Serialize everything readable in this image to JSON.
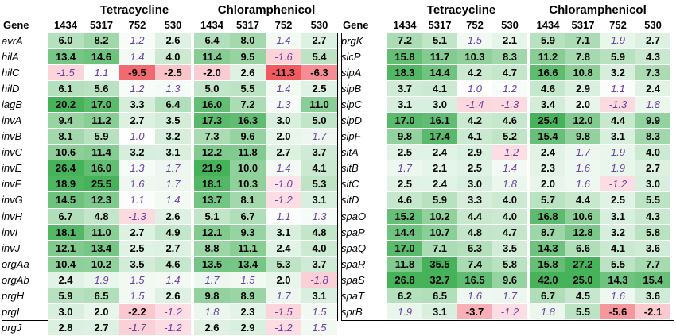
{
  "chart_data": [
    {
      "type": "heatmap",
      "panel": "left",
      "row_header": "Gene",
      "groups": [
        {
          "label": "Tetracycline",
          "columns": [
            "1434",
            "5317",
            "752",
            "530"
          ]
        },
        {
          "label": "Chloramphenicol",
          "columns": [
            "1434",
            "5317",
            "752",
            "530"
          ]
        }
      ],
      "rows": [
        {
          "gene": "avrA",
          "values": [
            6.0,
            8.2,
            1.2,
            2.6,
            6.4,
            8.0,
            1.4,
            2.7
          ]
        },
        {
          "gene": "hilA",
          "values": [
            13.4,
            14.6,
            1.4,
            4.0,
            11.4,
            9.5,
            -1.6,
            5.4
          ]
        },
        {
          "gene": "hilC",
          "values": [
            -1.5,
            1.1,
            -9.5,
            -2.5,
            -2.0,
            2.6,
            -11.3,
            -6.3
          ]
        },
        {
          "gene": "hilD",
          "values": [
            6.1,
            5.6,
            1.2,
            1.3,
            5.0,
            5.5,
            1.4,
            2.5
          ]
        },
        {
          "gene": "iagB",
          "values": [
            20.2,
            17.0,
            3.3,
            6.4,
            16.0,
            7.2,
            1.3,
            11.0
          ]
        },
        {
          "gene": "invA",
          "values": [
            9.4,
            11.2,
            2.7,
            3.5,
            17.3,
            16.3,
            3.0,
            5.0
          ]
        },
        {
          "gene": "invB",
          "values": [
            8.1,
            5.9,
            1.0,
            3.2,
            7.3,
            9.6,
            2.0,
            1.7
          ]
        },
        {
          "gene": "invC",
          "values": [
            10.6,
            11.4,
            3.2,
            3.1,
            12.2,
            11.8,
            2.7,
            3.7
          ]
        },
        {
          "gene": "invE",
          "values": [
            26.4,
            16.0,
            1.3,
            1.7,
            21.9,
            10.0,
            1.4,
            4.1
          ]
        },
        {
          "gene": "invF",
          "values": [
            18.9,
            25.5,
            1.6,
            1.7,
            18.1,
            10.3,
            -1.0,
            5.3
          ]
        },
        {
          "gene": "invG",
          "values": [
            14.5,
            12.3,
            1.1,
            1.4,
            13.7,
            8.1,
            -1.2,
            3.1
          ]
        },
        {
          "gene": "invH",
          "values": [
            6.7,
            4.8,
            -1.3,
            2.6,
            5.1,
            6.7,
            1.1,
            1.3
          ]
        },
        {
          "gene": "invI",
          "values": [
            18.1,
            11.0,
            2.7,
            4.9,
            12.1,
            9.3,
            3.1,
            4.8
          ]
        },
        {
          "gene": "invJ",
          "values": [
            12.1,
            13.4,
            2.5,
            2.7,
            8.8,
            11.1,
            2.4,
            4.0
          ]
        },
        {
          "gene": "orgAa",
          "values": [
            10.4,
            10.2,
            3.5,
            4.6,
            13.5,
            13.4,
            5.3,
            3.7
          ]
        },
        {
          "gene": "orgAb",
          "values": [
            2.4,
            1.9,
            1.5,
            1.4,
            1.7,
            1.5,
            2.0,
            -1.8
          ]
        },
        {
          "gene": "prgH",
          "values": [
            5.9,
            6.5,
            1.5,
            2.6,
            9.8,
            8.9,
            1.7,
            3.1
          ]
        },
        {
          "gene": "prgI",
          "values": [
            3.0,
            2.0,
            -2.2,
            -1.2,
            1.8,
            2.3,
            -1.5,
            1.5
          ]
        },
        {
          "gene": "prgJ",
          "values": [
            2.8,
            2.7,
            -1.7,
            -1.2,
            2.6,
            2.9,
            -1.2,
            1.5
          ]
        }
      ]
    },
    {
      "type": "heatmap",
      "panel": "right",
      "row_header": "Gene",
      "groups": [
        {
          "label": "Tetracycline",
          "columns": [
            "1434",
            "5317",
            "752",
            "530"
          ]
        },
        {
          "label": "Chloramphenicol",
          "columns": [
            "1434",
            "5317",
            "752",
            "530"
          ]
        }
      ],
      "rows": [
        {
          "gene": "prgK",
          "values": [
            7.2,
            5.1,
            1.5,
            2.1,
            5.9,
            7.1,
            1.9,
            2.7
          ]
        },
        {
          "gene": "sicP",
          "values": [
            15.8,
            11.7,
            10.3,
            8.3,
            11.2,
            7.8,
            5.9,
            4.3
          ]
        },
        {
          "gene": "sipA",
          "values": [
            18.3,
            14.4,
            4.2,
            4.7,
            16.6,
            10.8,
            3.2,
            7.3
          ]
        },
        {
          "gene": "sipB",
          "values": [
            3.7,
            4.1,
            1.0,
            1.2,
            4.6,
            2.9,
            1.1,
            2.4
          ]
        },
        {
          "gene": "sipC",
          "values": [
            3.1,
            3.0,
            -1.4,
            -1.3,
            3.4,
            2.0,
            -1.3,
            1.8
          ]
        },
        {
          "gene": "sipD",
          "values": [
            17.0,
            16.1,
            4.2,
            4.6,
            25.4,
            12.0,
            4.4,
            9.9
          ]
        },
        {
          "gene": "sipF",
          "values": [
            9.8,
            17.4,
            4.1,
            5.2,
            15.4,
            9.8,
            3.1,
            8.3
          ]
        },
        {
          "gene": "sitA",
          "values": [
            2.5,
            2.4,
            2.9,
            -1.2,
            2.4,
            1.7,
            1.9,
            4.0
          ]
        },
        {
          "gene": "sitB",
          "values": [
            1.7,
            2.1,
            2.5,
            1.4,
            2.3,
            1.6,
            1.9,
            2.7
          ]
        },
        {
          "gene": "sitC",
          "values": [
            2.5,
            2.4,
            3.0,
            1.8,
            2.0,
            1.6,
            -1.2,
            3.0
          ]
        },
        {
          "gene": "sitD",
          "values": [
            4.6,
            5.9,
            3.3,
            4.0,
            5.7,
            4.4,
            2.5,
            5.5
          ]
        },
        {
          "gene": "spaO",
          "values": [
            15.2,
            10.2,
            4.4,
            4.0,
            16.8,
            10.6,
            3.1,
            4.3
          ]
        },
        {
          "gene": "spaP",
          "values": [
            14.4,
            10.7,
            4.8,
            4.7,
            8.7,
            12.8,
            3.2,
            5.8
          ]
        },
        {
          "gene": "spaQ",
          "values": [
            17.0,
            7.1,
            6.3,
            3.5,
            14.3,
            6.6,
            4.1,
            3.6
          ]
        },
        {
          "gene": "spaR",
          "values": [
            11.8,
            35.5,
            7.4,
            5.8,
            15.8,
            27.2,
            5.5,
            7.7
          ]
        },
        {
          "gene": "spaS",
          "values": [
            26.8,
            32.7,
            16.5,
            9.6,
            42.0,
            25.0,
            14.3,
            15.4
          ]
        },
        {
          "gene": "spaT",
          "values": [
            6.2,
            6.5,
            1.6,
            1.7,
            6.7,
            4.5,
            1.6,
            3.6
          ]
        },
        {
          "gene": "sprB",
          "values": [
            1.9,
            3.1,
            -3.7,
            -1.2,
            1.8,
            5.5,
            -5.6,
            -2.1
          ]
        }
      ]
    }
  ]
}
